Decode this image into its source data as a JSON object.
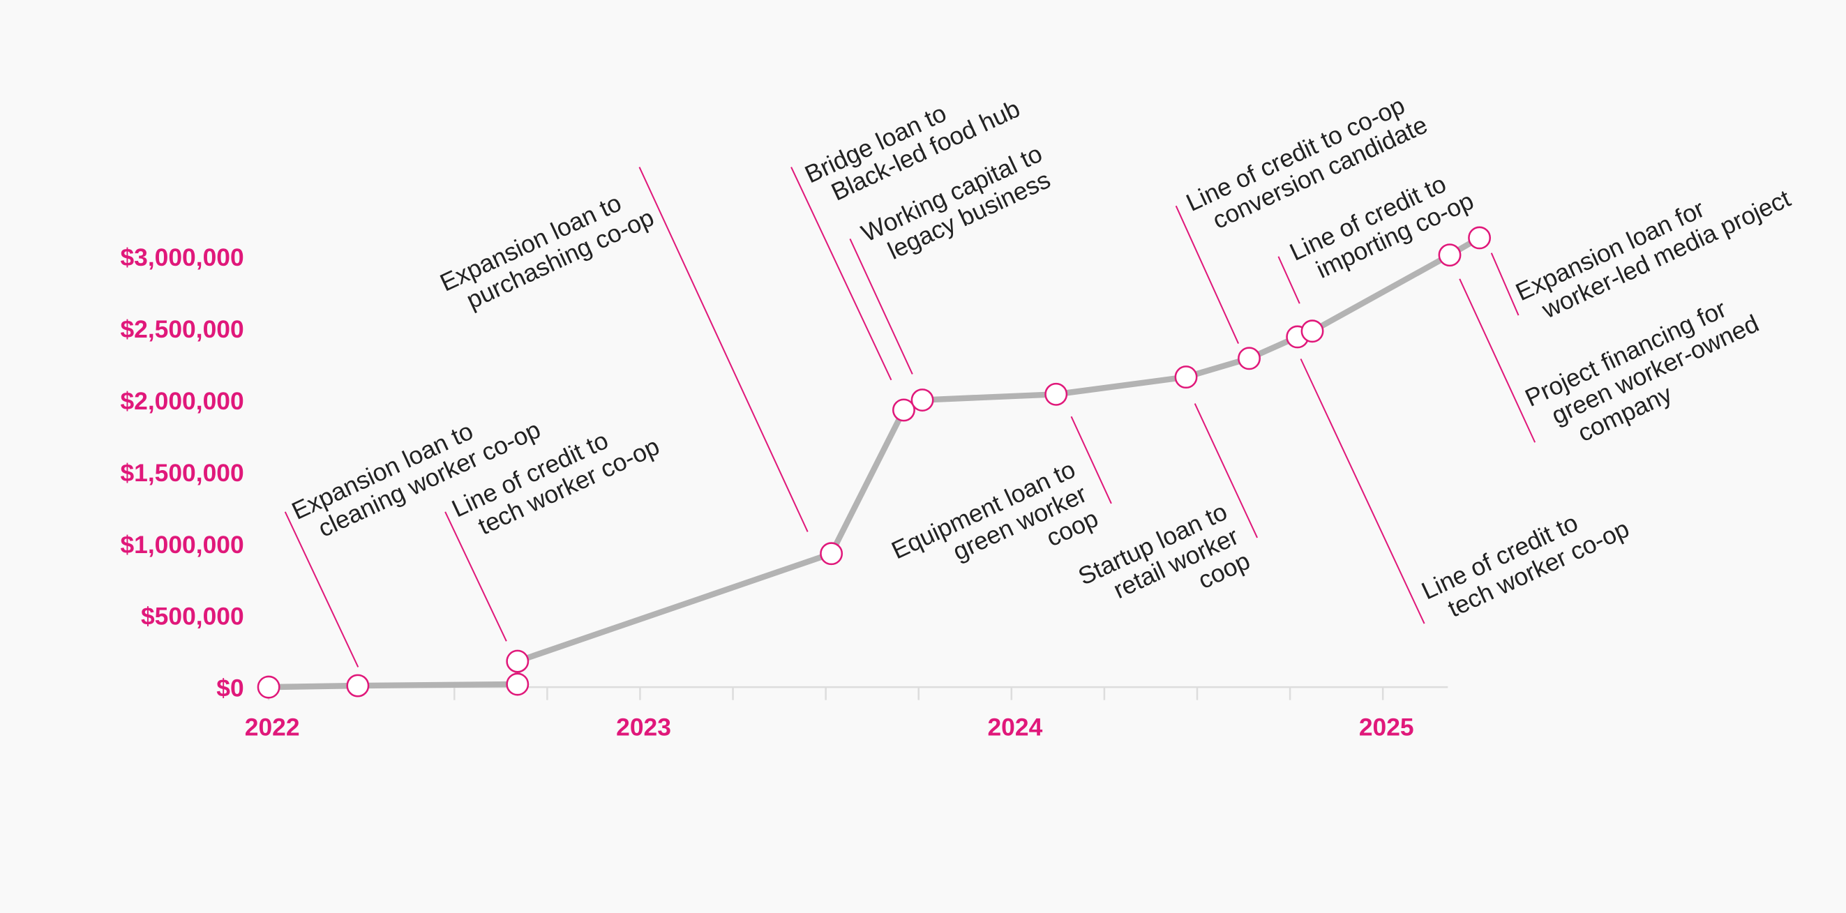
{
  "chart_data": {
    "type": "line",
    "x": [
      2022.0,
      2022.24,
      2022.67,
      2022.67,
      2023.515,
      2023.71,
      2023.76,
      2024.12,
      2024.47,
      2024.64,
      2024.77,
      2024.81,
      2025.18,
      2025.26
    ],
    "values": [
      0,
      10000,
      20000,
      180000,
      930000,
      1930000,
      2000000,
      2040000,
      2160000,
      2290000,
      2440000,
      2480000,
      3010000,
      3130000
    ],
    "labels": [
      null,
      [
        "Expansion loan to",
        "cleaning worker co-op"
      ],
      null,
      [
        "Line of credit to",
        "tech worker co-op"
      ],
      [
        "Expansion loan to",
        "purchashing co-op"
      ],
      [
        "Bridge loan to",
        "Black-led food hub"
      ],
      [
        "Working capital to",
        "legacy business"
      ],
      [
        "Equipment loan to",
        "green worker",
        "coop"
      ],
      [
        "Startup loan to",
        "retail worker",
        "coop"
      ],
      [
        "Line of credit to co-op",
        "conversion candidate"
      ],
      [
        "Line of credit to",
        "tech worker co-op"
      ],
      [
        "Line of credit to",
        "importing co-op"
      ],
      [
        "Project financing for",
        "green worker-owned",
        "company"
      ],
      [
        "Expansion loan for",
        "worker-led media project"
      ]
    ],
    "line_color": "#b3b3b3",
    "marker_color": "#e0187a",
    "xlim": [
      2022,
      2025.175
    ],
    "xticks": [
      2022,
      2023,
      2024,
      2025
    ],
    "xminorticks": [
      2022.5,
      2022.75,
      2023.25,
      2023.5,
      2023.75,
      2024.25,
      2024.5,
      2024.75
    ],
    "ylim": [
      0,
      3000000
    ],
    "yticks": [
      {
        "value": 0,
        "label": "$0"
      },
      {
        "value": 500000,
        "label": "$500,000"
      },
      {
        "value": 1000000,
        "label": "$1,000,000"
      },
      {
        "value": 1500000,
        "label": "$1,500,000"
      },
      {
        "value": 2000000,
        "label": "$2,000,000"
      },
      {
        "value": 2500000,
        "label": "$2,500,000"
      },
      {
        "value": 3000000,
        "label": "$3,000,000"
      }
    ]
  }
}
